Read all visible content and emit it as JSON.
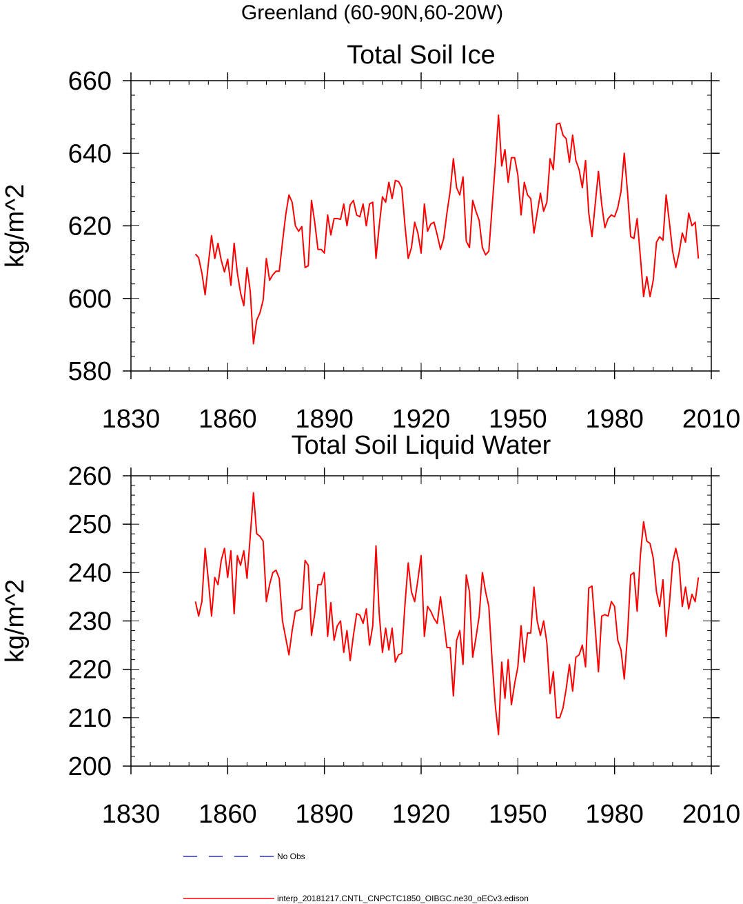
{
  "page": {
    "title": "Greenland (60-90N,60-20W)"
  },
  "colors": {
    "model_line": "#ff0000",
    "obs_line": "#0000cc",
    "axis": "#000000"
  },
  "legend": {
    "items": [
      {
        "label": "No Obs",
        "style": "dashed",
        "color": "#0000cc"
      },
      {
        "label": "interp_20181217.CNTL_CNPCTC1850_OIBGC.ne30_oECv3.edison",
        "style": "solid",
        "color": "#ff0000"
      }
    ]
  },
  "chart_data": [
    {
      "type": "line",
      "title": "Total Soil Ice",
      "xlabel": "",
      "ylabel": "kg/m^2",
      "xlim": [
        1830,
        2010
      ],
      "ylim": [
        580,
        660
      ],
      "xticks": [
        1830,
        1860,
        1890,
        1920,
        1950,
        1980,
        2010
      ],
      "yticks": [
        580,
        600,
        620,
        640,
        660
      ],
      "x_start": 1850,
      "x_step": 1,
      "series": [
        {
          "name": "interp_20181217.CNTL_CNPCTC1850_OIBGC.ne30_oECv3.edison",
          "values": [
            612.2,
            611.2,
            607.0,
            601.0,
            609.5,
            617.3,
            611.0,
            615.2,
            610.5,
            607.3,
            610.8,
            603.6,
            615.2,
            607.0,
            601.5,
            598.0,
            608.5,
            602.0,
            587.5,
            594.0,
            596.0,
            599.5,
            611.0,
            605.0,
            606.5,
            607.5,
            607.5,
            615.5,
            623.0,
            628.5,
            626.5,
            620.0,
            618.5,
            619.8,
            608.5,
            609.0,
            627.0,
            621.0,
            613.5,
            613.5,
            612.5,
            623.0,
            617.5,
            622.0,
            622.0,
            621.8,
            626.0,
            620.0,
            625.8,
            627.0,
            623.0,
            622.5,
            626.0,
            620.0,
            626.0,
            626.5,
            611.0,
            620.0,
            628.0,
            626.5,
            632.0,
            627.5,
            632.5,
            632.2,
            630.5,
            620.0,
            611.0,
            614.0,
            621.0,
            618.0,
            612.5,
            626.0,
            618.5,
            620.5,
            621.0,
            617.5,
            613.5,
            616.5,
            623.5,
            629.5,
            638.5,
            630.5,
            628.5,
            633.5,
            615.8,
            614.0,
            627.0,
            624.0,
            621.5,
            614.0,
            612.0,
            613.0,
            625.0,
            637.0,
            650.5,
            636.5,
            641.0,
            632.0,
            638.8,
            638.8,
            634.0,
            623.0,
            632.0,
            628.5,
            627.5,
            618.0,
            623.5,
            629.0,
            624.0,
            626.5,
            638.5,
            635.5,
            648.0,
            648.3,
            645.0,
            644.0,
            637.5,
            645.0,
            638.0,
            635.5,
            630.5,
            638.0,
            623.5,
            617.0,
            626.0,
            635.0,
            626.0,
            619.5,
            622.0,
            623.0,
            622.5,
            625.0,
            629.5,
            640.0,
            629.5,
            617.0,
            616.5,
            622.0,
            611.5,
            600.5,
            606.0,
            600.5,
            605.0,
            615.5,
            617.0,
            616.0,
            628.5,
            621.0,
            613.0,
            608.5,
            612.5,
            618.0,
            615.5,
            623.5,
            620.0,
            621.0,
            611.0
          ]
        }
      ]
    },
    {
      "type": "line",
      "title": "Total Soil Liquid Water",
      "xlabel": "",
      "ylabel": "kg/m^2",
      "xlim": [
        1830,
        2010
      ],
      "ylim": [
        200,
        260
      ],
      "xticks": [
        1830,
        1860,
        1890,
        1920,
        1950,
        1980,
        2010
      ],
      "yticks": [
        200,
        210,
        220,
        230,
        240,
        250,
        260
      ],
      "x_start": 1850,
      "x_step": 1,
      "series": [
        {
          "name": "interp_20181217.CNTL_CNPCTC1850_OIBGC.ne30_oECv3.edison",
          "values": [
            234.0,
            231.0,
            234.0,
            245.0,
            238.5,
            231.0,
            239.0,
            237.5,
            242.5,
            245.0,
            239.0,
            244.5,
            231.5,
            243.5,
            241.5,
            244.5,
            238.8,
            247.5,
            256.5,
            248.0,
            247.5,
            246.5,
            234.0,
            237.5,
            240.0,
            240.5,
            238.8,
            230.0,
            226.5,
            223.0,
            228.0,
            232.0,
            232.2,
            232.5,
            242.5,
            241.5,
            227.0,
            231.5,
            237.5,
            237.5,
            240.0,
            226.8,
            233.8,
            226.0,
            229.0,
            230.0,
            223.5,
            228.0,
            221.8,
            227.0,
            231.5,
            231.2,
            229.5,
            232.5,
            225.0,
            229.0,
            245.5,
            231.5,
            223.5,
            228.5,
            224.0,
            228.5,
            221.5,
            223.0,
            223.3,
            233.5,
            242.0,
            236.0,
            234.0,
            238.5,
            243.5,
            226.8,
            233.0,
            232.0,
            230.5,
            229.5,
            235.0,
            230.0,
            224.5,
            224.5,
            214.5,
            226.0,
            228.0,
            221.0,
            239.5,
            236.0,
            222.5,
            226.5,
            231.0,
            240.0,
            236.0,
            233.0,
            222.0,
            212.5,
            206.5,
            221.5,
            214.0,
            222.0,
            212.7,
            217.0,
            220.5,
            229.0,
            221.5,
            227.5,
            227.5,
            237.0,
            230.0,
            227.0,
            230.0,
            225.5,
            215.0,
            219.5,
            210.0,
            210.0,
            212.0,
            216.0,
            221.0,
            215.5,
            222.5,
            223.0,
            225.0,
            220.5,
            236.8,
            237.2,
            228.5,
            219.5,
            231.0,
            231.3,
            231.0,
            234.0,
            233.0,
            226.0,
            224.0,
            218.0,
            227.0,
            239.5,
            240.0,
            232.0,
            243.5,
            250.5,
            246.5,
            246.0,
            243.0,
            236.0,
            233.0,
            238.5,
            226.8,
            233.5,
            242.0,
            245.0,
            242.0,
            233.0,
            237.0,
            232.5,
            235.5,
            234.0,
            239.0
          ]
        }
      ]
    }
  ]
}
